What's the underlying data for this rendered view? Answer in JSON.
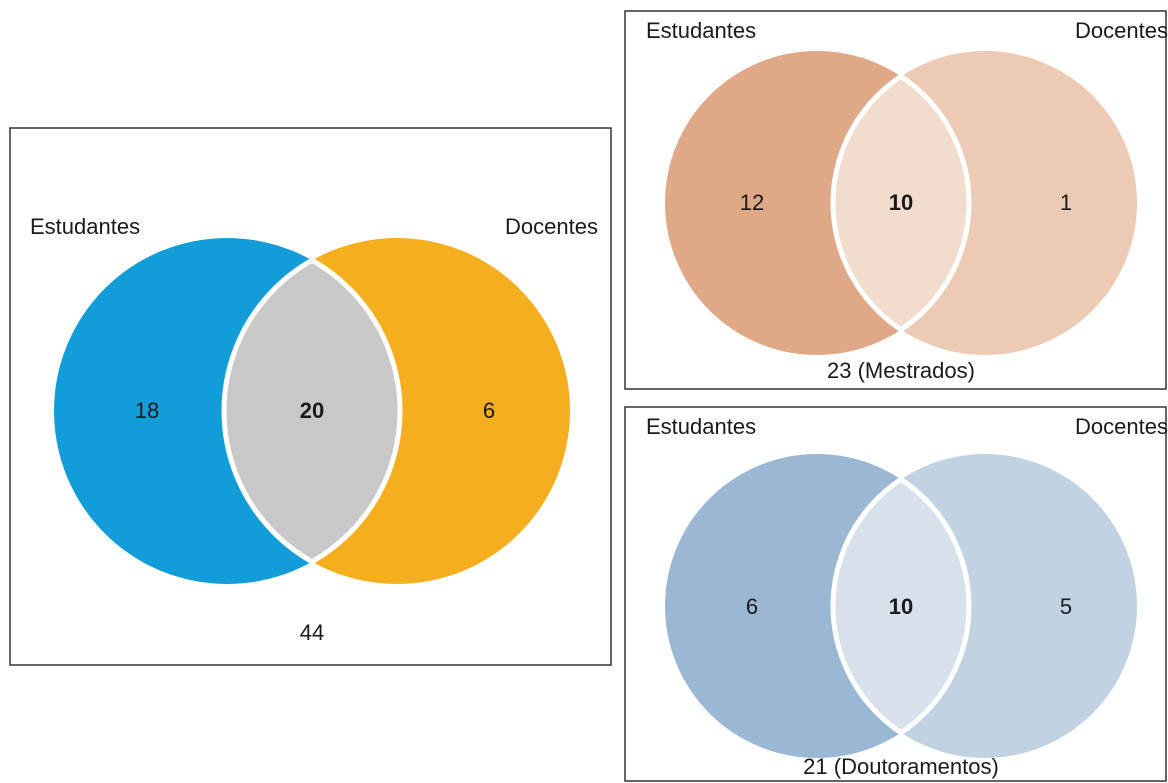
{
  "diagrams": {
    "total": {
      "left_label": "Estudantes",
      "right_label": "Docentes",
      "left_only": "18",
      "both": "20",
      "right_only": "6",
      "total": "44",
      "colors": {
        "left": "#129dd8",
        "right": "#f5ae1e",
        "overlap": "#c8c8c8"
      }
    },
    "mestrados": {
      "left_label": "Estudantes",
      "right_label": "Docentes",
      "left_only": "12",
      "both": "10",
      "right_only": "1",
      "total": "23 (Mestrados)",
      "colors": {
        "left": "#dfa886",
        "right": "#edcab3",
        "overlap": "#f2dcce"
      }
    },
    "doutoramentos": {
      "left_label": "Estudantes",
      "right_label": "Docentes",
      "left_only": "6",
      "both": "10",
      "right_only": "5",
      "total": "21 (Doutoramentos)",
      "colors": {
        "left": "#9ab7d3",
        "right": "#c1d2e3",
        "overlap": "#d6e1ec"
      }
    }
  }
}
